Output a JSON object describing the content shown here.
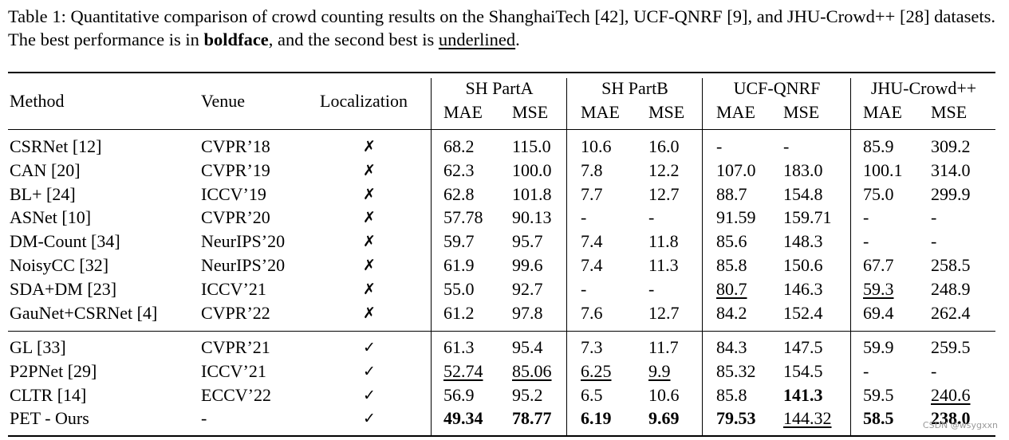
{
  "caption": {
    "prefix": "Table 1:  Quantitative comparison of crowd counting results on the ShanghaiTech [42], UCF-QNRF [9], and JHU-Crowd++ [28] datasets. The best performance is in ",
    "bold_word": "boldface",
    "middle": ", and the second best is ",
    "underlined_word": "underlined",
    "suffix": "."
  },
  "header": {
    "method": "Method",
    "venue": "Venue",
    "localization": "Localization",
    "groups": [
      "SH PartA",
      "SH PartB",
      "UCF-QNRF",
      "JHU-Crowd++"
    ],
    "metrics": [
      "MAE",
      "MSE",
      "MAE",
      "MSE",
      "MAE",
      "MSE",
      "MAE",
      "MSE"
    ]
  },
  "marks": {
    "cross": "✗",
    "check": "✓"
  },
  "rows": [
    {
      "method": "CSRNet [12]",
      "venue": "CVPR’18",
      "loc": "cross",
      "vals": [
        "68.2",
        "115.0",
        "10.6",
        "16.0",
        "-",
        "-",
        "85.9",
        "309.2"
      ],
      "bold": [],
      "under": []
    },
    {
      "method": "CAN [20]",
      "venue": "CVPR’19",
      "loc": "cross",
      "vals": [
        "62.3",
        "100.0",
        "7.8",
        "12.2",
        "107.0",
        "183.0",
        "100.1",
        "314.0"
      ],
      "bold": [],
      "under": []
    },
    {
      "method": "BL+ [24]",
      "venue": "ICCV’19",
      "loc": "cross",
      "vals": [
        "62.8",
        "101.8",
        "7.7",
        "12.7",
        "88.7",
        "154.8",
        "75.0",
        "299.9"
      ],
      "bold": [],
      "under": []
    },
    {
      "method": "ASNet [10]",
      "venue": "CVPR’20",
      "loc": "cross",
      "vals": [
        "57.78",
        "90.13",
        "-",
        "-",
        "91.59",
        "159.71",
        "-",
        "-"
      ],
      "bold": [],
      "under": []
    },
    {
      "method": "DM-Count [34]",
      "venue": "NeurIPS’20",
      "loc": "cross",
      "vals": [
        "59.7",
        "95.7",
        "7.4",
        "11.8",
        "85.6",
        "148.3",
        "-",
        "-"
      ],
      "bold": [],
      "under": []
    },
    {
      "method": "NoisyCC [32]",
      "venue": "NeurIPS’20",
      "loc": "cross",
      "vals": [
        "61.9",
        "99.6",
        "7.4",
        "11.3",
        "85.8",
        "150.6",
        "67.7",
        "258.5"
      ],
      "bold": [],
      "under": []
    },
    {
      "method": "SDA+DM [23]",
      "venue": "ICCV’21",
      "loc": "cross",
      "vals": [
        "55.0",
        "92.7",
        "-",
        "-",
        "80.7",
        "146.3",
        "59.3",
        "248.9"
      ],
      "bold": [],
      "under": [
        4,
        6
      ]
    },
    {
      "method": "GauNet+CSRNet [4]",
      "venue": "CVPR’22",
      "loc": "cross",
      "vals": [
        "61.2",
        "97.8",
        "7.6",
        "12.7",
        "84.2",
        "152.4",
        "69.4",
        "262.4"
      ],
      "bold": [],
      "under": []
    },
    {
      "method": "GL [33]",
      "venue": "CVPR’21",
      "loc": "check",
      "vals": [
        "61.3",
        "95.4",
        "7.3",
        "11.7",
        "84.3",
        "147.5",
        "59.9",
        "259.5"
      ],
      "bold": [],
      "under": []
    },
    {
      "method": "P2PNet [29]",
      "venue": "ICCV’21",
      "loc": "check",
      "vals": [
        "52.74",
        "85.06",
        "6.25",
        "9.9",
        "85.32",
        "154.5",
        "-",
        "-"
      ],
      "bold": [],
      "under": [
        0,
        1,
        2,
        3
      ]
    },
    {
      "method": "CLTR [14]",
      "venue": "ECCV’22",
      "loc": "check",
      "vals": [
        "56.9",
        "95.2",
        "6.5",
        "10.6",
        "85.8",
        "141.3",
        "59.5",
        "240.6"
      ],
      "bold": [
        5
      ],
      "under": [
        7
      ]
    },
    {
      "method": "PET - Ours",
      "venue": "-",
      "loc": "check",
      "vals": [
        "49.34",
        "78.77",
        "6.19",
        "9.69",
        "79.53",
        "144.32",
        "58.5",
        "238.0"
      ],
      "bold": [
        0,
        1,
        2,
        3,
        4,
        6,
        7
      ],
      "under": [
        5
      ]
    }
  ],
  "watermark": "CSDN @wsygxxn"
}
